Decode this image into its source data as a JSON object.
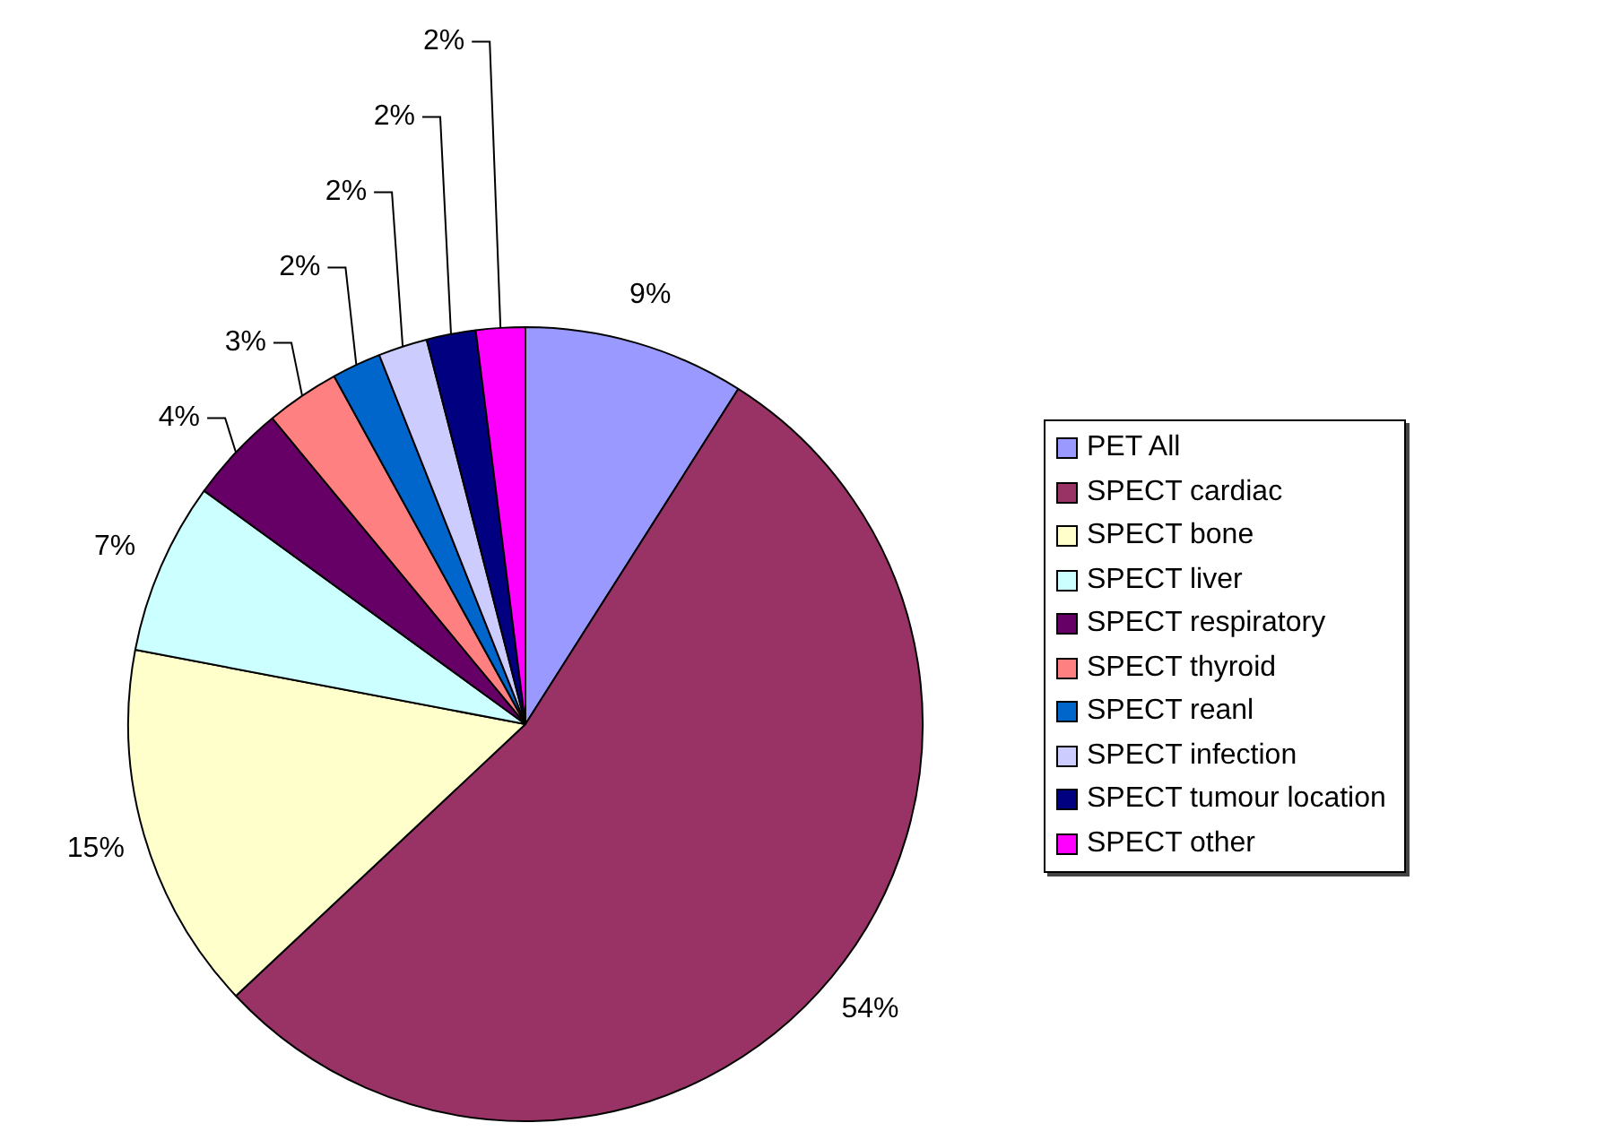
{
  "chart_data": {
    "type": "pie",
    "categories": [
      "PET All",
      "SPECT cardiac",
      "SPECT bone",
      "SPECT liver",
      "SPECT respiratory",
      "SPECT thyroid",
      "SPECT reanl",
      "SPECT infection",
      "SPECT tumour location",
      "SPECT other"
    ],
    "values": [
      9,
      54,
      15,
      7,
      4,
      3,
      2,
      2,
      2,
      2
    ],
    "value_labels": [
      "9%",
      "54%",
      "15%",
      "7%",
      "4%",
      "3%",
      "2%",
      "2%",
      "2%",
      "2%"
    ],
    "colors": [
      "#9999ff",
      "#993366",
      "#ffffcc",
      "#ccffff",
      "#660066",
      "#ff8080",
      "#0066cc",
      "#ccccff",
      "#000080",
      "#ff00ff"
    ],
    "legend": "right"
  }
}
